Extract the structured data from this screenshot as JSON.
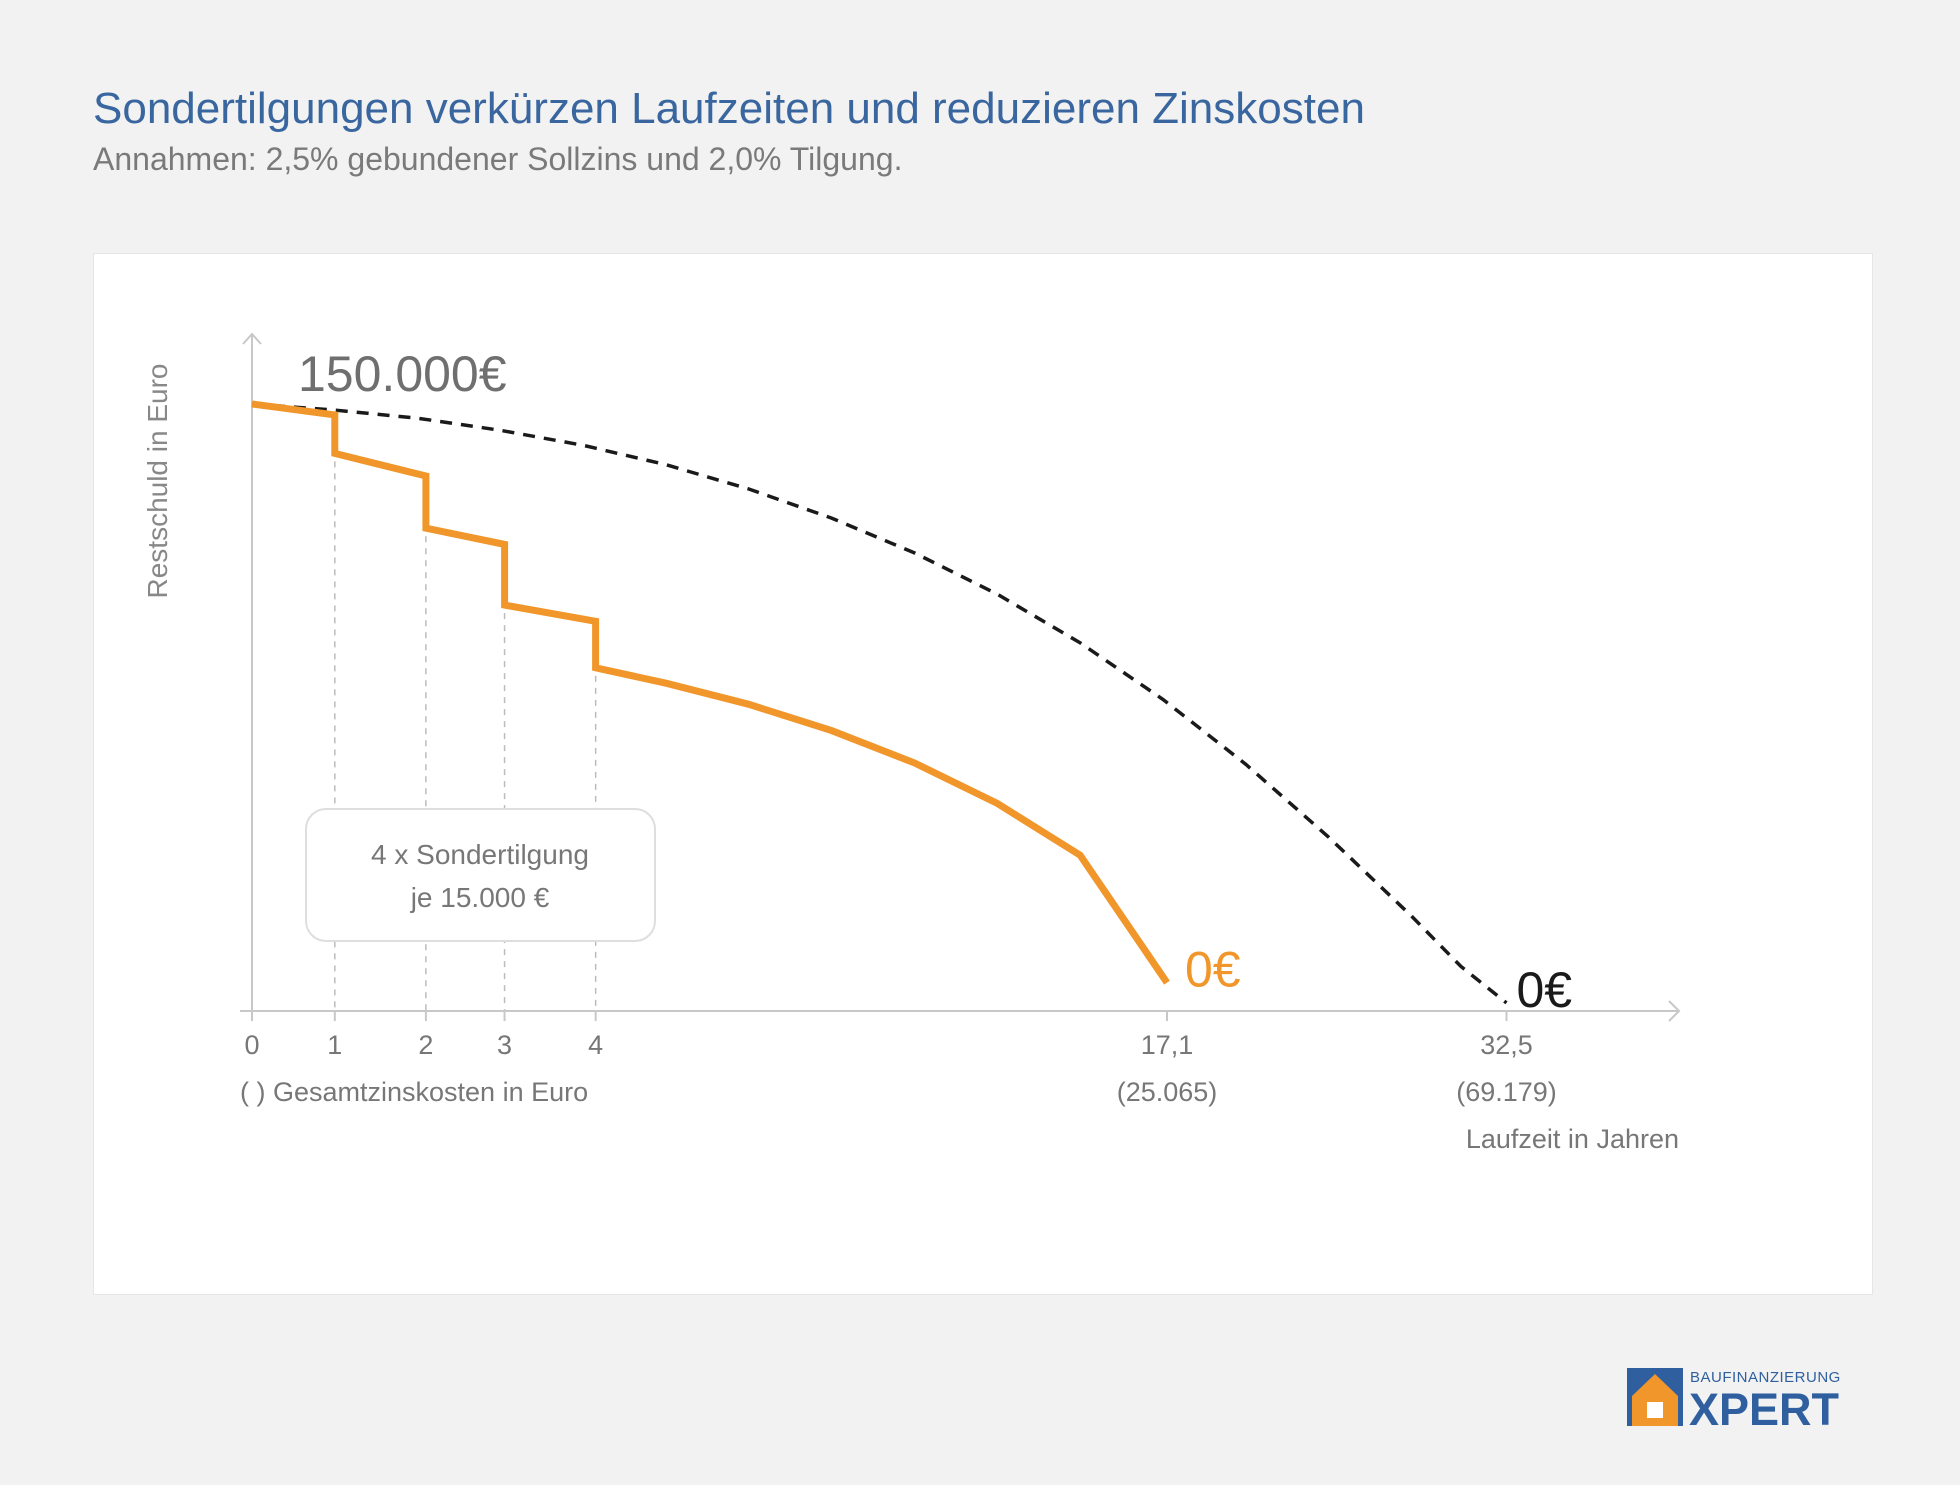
{
  "header": {
    "title": "Sondertilgungen verkürzen Laufzeiten und reduzieren Zinskosten",
    "subtitle": "Annahmen: 2,5% gebundener Sollzins und 2,0% Tilgung."
  },
  "chart_data": {
    "type": "line",
    "ylabel": "Restschuld in Euro",
    "xlabel": "Laufzeit in Jahren",
    "xlabel_secondary": "( )  Gesamtzinskosten in Euro",
    "xlim": [
      0,
      33.5
    ],
    "ylim": [
      0,
      150000
    ],
    "y_start_label": "150.000€",
    "x_ticks": [
      {
        "value": 0,
        "label": "0"
      },
      {
        "value": 2,
        "label": "1"
      },
      {
        "value": 4.2,
        "label": "2"
      },
      {
        "value": 6.1,
        "label": "3"
      },
      {
        "value": 8.3,
        "label": "4"
      },
      {
        "value": 22.1,
        "label": "17,1",
        "sublabel": "(25.065)"
      },
      {
        "value": 30.3,
        "label": "32,5",
        "sublabel": "(69.179)"
      }
    ],
    "series": [
      {
        "style": "dashed",
        "color": "#1a1a1a",
        "end_label": "0€",
        "points": [
          [
            0,
            150000
          ],
          [
            2,
            148500
          ],
          [
            4,
            146500
          ],
          [
            6,
            143500
          ],
          [
            8,
            139800
          ],
          [
            10,
            135000
          ],
          [
            12,
            129000
          ],
          [
            14,
            121800
          ],
          [
            16,
            113200
          ],
          [
            18,
            103000
          ],
          [
            20,
            91000
          ],
          [
            22,
            77000
          ],
          [
            24,
            61000
          ],
          [
            26,
            43000
          ],
          [
            28,
            23500
          ],
          [
            29.2,
            11000
          ],
          [
            30.3,
            2000
          ]
        ]
      },
      {
        "style": "solid",
        "color": "#f0962a",
        "end_label": "0€",
        "points": [
          [
            0,
            150000
          ],
          [
            2,
            147300
          ],
          [
            2,
            137800
          ],
          [
            4.2,
            132200
          ],
          [
            4.2,
            119300
          ],
          [
            6.1,
            115300
          ],
          [
            6.1,
            100300
          ],
          [
            8.3,
            96300
          ],
          [
            8.3,
            84800
          ],
          [
            10,
            81000
          ],
          [
            12,
            75800
          ],
          [
            14,
            69300
          ],
          [
            16,
            61300
          ],
          [
            18,
            51300
          ],
          [
            20,
            38500
          ],
          [
            22.1,
            7000
          ]
        ]
      }
    ],
    "annotation": {
      "line1": "4 x Sondertilgung",
      "line2": "je 15.000 €"
    },
    "grid": false,
    "legend": "none"
  },
  "logo": {
    "line1": "BAUFINANZIERUNG",
    "line2": "XPERT",
    "colors": {
      "blue": "#2f5f9e",
      "orange": "#f0962a"
    }
  }
}
